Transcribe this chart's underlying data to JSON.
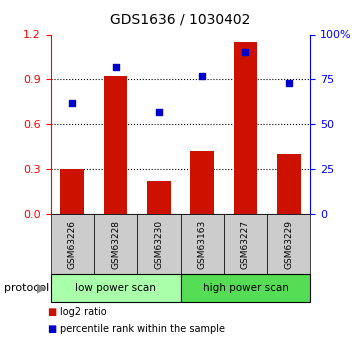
{
  "title": "GDS1636 / 1030402",
  "categories": [
    "GSM63226",
    "GSM63228",
    "GSM63230",
    "GSM63163",
    "GSM63227",
    "GSM63229"
  ],
  "bar_values": [
    0.3,
    0.92,
    0.22,
    0.42,
    1.15,
    0.4
  ],
  "scatter_pct": [
    62,
    82,
    57,
    77,
    90,
    73
  ],
  "bar_color": "#cc1100",
  "scatter_color": "#0000cc",
  "left_ylim": [
    0,
    1.2
  ],
  "right_ylim": [
    0,
    100
  ],
  "left_yticks": [
    0,
    0.3,
    0.6,
    0.9,
    1.2
  ],
  "right_yticks": [
    0,
    25,
    50,
    75,
    100
  ],
  "right_yticklabels": [
    "0",
    "25",
    "50",
    "75",
    "100%"
  ],
  "protocol_groups": [
    {
      "label": "low power scan",
      "indices": [
        0,
        1,
        2
      ],
      "color": "#aaffaa"
    },
    {
      "label": "high power scan",
      "indices": [
        3,
        4,
        5
      ],
      "color": "#55dd55"
    }
  ],
  "legend_items": [
    {
      "label": "log2 ratio",
      "color": "#cc1100"
    },
    {
      "label": "percentile rank within the sample",
      "color": "#0000cc"
    }
  ],
  "protocol_label": "protocol",
  "label_area_color": "#cccccc",
  "bar_width": 0.55
}
